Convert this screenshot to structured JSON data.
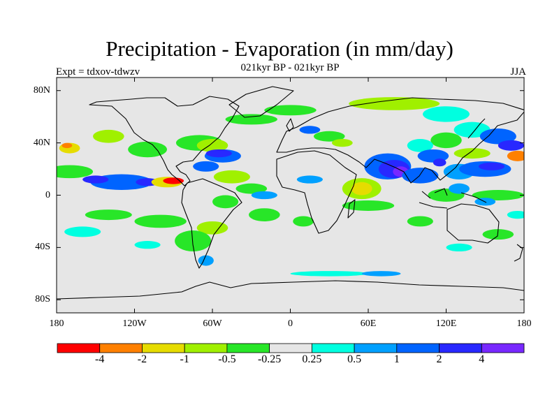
{
  "title": "Precipitation - Evaporation (in mm/day)",
  "subtitle": "021kyr BP - 021kyr BP",
  "experiment": "Expt = tdxov-tdwzv",
  "season": "JJA",
  "lat_ticks": [
    {
      "label": "80N",
      "value": 80
    },
    {
      "label": "40N",
      "value": 40
    },
    {
      "label": "0",
      "value": 0
    },
    {
      "label": "40S",
      "value": -40
    },
    {
      "label": "80S",
      "value": -80
    }
  ],
  "lon_ticks": [
    {
      "label": "180",
      "value": -180
    },
    {
      "label": "120W",
      "value": -120
    },
    {
      "label": "60W",
      "value": -60
    },
    {
      "label": "0",
      "value": 0
    },
    {
      "label": "60E",
      "value": 60
    },
    {
      "label": "120E",
      "value": 120
    },
    {
      "label": "180",
      "value": 180
    }
  ],
  "colorbar": {
    "colors": [
      "#ff0000",
      "#ff8000",
      "#e6dc00",
      "#a0f000",
      "#28e628",
      "#e6e6e6",
      "#00ffe0",
      "#00a0ff",
      "#0064ff",
      "#2828ff",
      "#7828ff"
    ],
    "labels": [
      "-4",
      "-2",
      "-1",
      "-0.5",
      "-0.25",
      "0.25",
      "0.5",
      "1",
      "2",
      "4"
    ]
  },
  "chart_data": {
    "type": "heatmap",
    "title": "Precipitation - Evaporation (in mm/day)",
    "subtitle": "021kyr BP - 021kyr BP",
    "xlabel": "",
    "ylabel": "",
    "xlim": [
      -180,
      180
    ],
    "ylim": [
      -90,
      90
    ],
    "x_ticks": [
      "180",
      "120W",
      "60W",
      "0",
      "60E",
      "120E",
      "180"
    ],
    "y_ticks": [
      "80N",
      "40N",
      "0",
      "40S",
      "80S"
    ],
    "missing_color": "#e6e6e6",
    "regions": [
      {
        "lon": -140,
        "lat": 45,
        "rx": 12,
        "ry": 5,
        "level": 3
      },
      {
        "lon": -110,
        "lat": 35,
        "rx": 15,
        "ry": 6,
        "level": 4
      },
      {
        "lon": -170,
        "lat": 18,
        "rx": 18,
        "ry": 5,
        "level": 4
      },
      {
        "lon": -130,
        "lat": 10,
        "rx": 24,
        "ry": 6,
        "level": 8
      },
      {
        "lon": -150,
        "lat": 12,
        "rx": 10,
        "ry": 3,
        "level": 9
      },
      {
        "lon": -110,
        "lat": 10,
        "rx": 9,
        "ry": 3,
        "level": 9
      },
      {
        "lon": -95,
        "lat": 10,
        "rx": 12,
        "ry": 4,
        "level": 2
      },
      {
        "lon": -90,
        "lat": 11,
        "rx": 8,
        "ry": 2.5,
        "level": 0
      },
      {
        "lon": -170,
        "lat": 36,
        "rx": 8,
        "ry": 4,
        "level": 2
      },
      {
        "lon": -172,
        "lat": 38,
        "rx": 4,
        "ry": 2,
        "level": 1
      },
      {
        "lon": -70,
        "lat": 40,
        "rx": 18,
        "ry": 6,
        "level": 4
      },
      {
        "lon": -60,
        "lat": 38,
        "rx": 12,
        "ry": 5,
        "level": 3
      },
      {
        "lon": -52,
        "lat": 30,
        "rx": 14,
        "ry": 5,
        "level": 8
      },
      {
        "lon": -55,
        "lat": 32,
        "rx": 10,
        "ry": 3,
        "level": 9
      },
      {
        "lon": -65,
        "lat": 22,
        "rx": 10,
        "ry": 4,
        "level": 8
      },
      {
        "lon": -45,
        "lat": 14,
        "rx": 14,
        "ry": 5,
        "level": 3
      },
      {
        "lon": -30,
        "lat": 5,
        "rx": 12,
        "ry": 4,
        "level": 4
      },
      {
        "lon": -20,
        "lat": 0,
        "rx": 10,
        "ry": 3,
        "level": 7
      },
      {
        "lon": -50,
        "lat": -5,
        "rx": 10,
        "ry": 5,
        "level": 4
      },
      {
        "lon": -60,
        "lat": -25,
        "rx": 12,
        "ry": 5,
        "level": 3
      },
      {
        "lon": -75,
        "lat": -35,
        "rx": 14,
        "ry": 8,
        "level": 4
      },
      {
        "lon": -65,
        "lat": -50,
        "rx": 6,
        "ry": 4,
        "level": 7
      },
      {
        "lon": -100,
        "lat": -20,
        "rx": 20,
        "ry": 5,
        "level": 4
      },
      {
        "lon": -140,
        "lat": -15,
        "rx": 18,
        "ry": 4,
        "level": 4
      },
      {
        "lon": -160,
        "lat": -28,
        "rx": 14,
        "ry": 4,
        "level": 6
      },
      {
        "lon": -110,
        "lat": -38,
        "rx": 10,
        "ry": 3,
        "level": 6
      },
      {
        "lon": -20,
        "lat": -15,
        "rx": 12,
        "ry": 5,
        "level": 4
      },
      {
        "lon": 10,
        "lat": -20,
        "rx": 8,
        "ry": 4,
        "level": 4
      },
      {
        "lon": 30,
        "lat": -60,
        "rx": 30,
        "ry": 2,
        "level": 6
      },
      {
        "lon": 70,
        "lat": -60,
        "rx": 15,
        "ry": 2,
        "level": 7
      },
      {
        "lon": -30,
        "lat": 58,
        "rx": 20,
        "ry": 4,
        "level": 4
      },
      {
        "lon": 0,
        "lat": 65,
        "rx": 20,
        "ry": 4,
        "level": 4
      },
      {
        "lon": 30,
        "lat": 45,
        "rx": 12,
        "ry": 4,
        "level": 4
      },
      {
        "lon": 15,
        "lat": 50,
        "rx": 8,
        "ry": 3,
        "level": 8
      },
      {
        "lon": 80,
        "lat": 70,
        "rx": 35,
        "ry": 5,
        "level": 3
      },
      {
        "lon": 120,
        "lat": 62,
        "rx": 18,
        "ry": 6,
        "level": 6
      },
      {
        "lon": 140,
        "lat": 50,
        "rx": 14,
        "ry": 6,
        "level": 6
      },
      {
        "lon": 160,
        "lat": 45,
        "rx": 14,
        "ry": 6,
        "level": 8
      },
      {
        "lon": 170,
        "lat": 38,
        "rx": 10,
        "ry": 4,
        "level": 9
      },
      {
        "lon": 120,
        "lat": 42,
        "rx": 12,
        "ry": 6,
        "level": 4
      },
      {
        "lon": 100,
        "lat": 38,
        "rx": 10,
        "ry": 5,
        "level": 6
      },
      {
        "lon": 75,
        "lat": 22,
        "rx": 18,
        "ry": 10,
        "level": 8
      },
      {
        "lon": 80,
        "lat": 20,
        "rx": 12,
        "ry": 7,
        "level": 9
      },
      {
        "lon": 85,
        "lat": 18,
        "rx": 6,
        "ry": 4,
        "level": 10
      },
      {
        "lon": 100,
        "lat": 15,
        "rx": 14,
        "ry": 6,
        "level": 8
      },
      {
        "lon": 110,
        "lat": 30,
        "rx": 12,
        "ry": 5,
        "level": 8
      },
      {
        "lon": 115,
        "lat": 25,
        "rx": 5,
        "ry": 3,
        "level": 9
      },
      {
        "lon": 130,
        "lat": 18,
        "rx": 12,
        "ry": 6,
        "level": 7
      },
      {
        "lon": 150,
        "lat": 20,
        "rx": 20,
        "ry": 6,
        "level": 8
      },
      {
        "lon": 155,
        "lat": 22,
        "rx": 10,
        "ry": 3,
        "level": 9
      },
      {
        "lon": 175,
        "lat": 30,
        "rx": 8,
        "ry": 4,
        "level": 1
      },
      {
        "lon": 140,
        "lat": 32,
        "rx": 14,
        "ry": 4,
        "level": 3
      },
      {
        "lon": 55,
        "lat": 5,
        "rx": 15,
        "ry": 8,
        "level": 3
      },
      {
        "lon": 55,
        "lat": 5,
        "rx": 8,
        "ry": 5,
        "level": 2
      },
      {
        "lon": 40,
        "lat": 40,
        "rx": 8,
        "ry": 3,
        "level": 3
      },
      {
        "lon": 15,
        "lat": 12,
        "rx": 10,
        "ry": 3,
        "level": 7
      },
      {
        "lon": 60,
        "lat": -8,
        "rx": 20,
        "ry": 4,
        "level": 4
      },
      {
        "lon": 120,
        "lat": 0,
        "rx": 14,
        "ry": 5,
        "level": 4
      },
      {
        "lon": 130,
        "lat": 5,
        "rx": 8,
        "ry": 4,
        "level": 7
      },
      {
        "lon": 160,
        "lat": 0,
        "rx": 20,
        "ry": 4,
        "level": 4
      },
      {
        "lon": 150,
        "lat": -5,
        "rx": 8,
        "ry": 3,
        "level": 7
      },
      {
        "lon": 100,
        "lat": -20,
        "rx": 10,
        "ry": 4,
        "level": 4
      },
      {
        "lon": 130,
        "lat": -40,
        "rx": 10,
        "ry": 3,
        "level": 6
      },
      {
        "lon": 160,
        "lat": -30,
        "rx": 12,
        "ry": 4,
        "level": 4
      },
      {
        "lon": 175,
        "lat": -15,
        "rx": 8,
        "ry": 3,
        "level": 6
      }
    ]
  }
}
